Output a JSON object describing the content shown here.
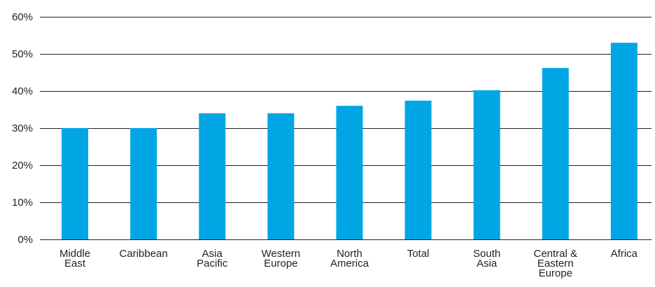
{
  "colors": {
    "bar": "#00a5e3",
    "gridline": "#231f20",
    "text": "#231f20",
    "background": "#ffffff"
  },
  "chart_data": {
    "type": "bar",
    "title": "",
    "xlabel": "",
    "ylabel": "",
    "categories": [
      [
        "Middle",
        "East"
      ],
      [
        "Caribbean"
      ],
      [
        "Asia",
        "Pacific"
      ],
      [
        "Western",
        "Europe"
      ],
      [
        "North",
        "America"
      ],
      [
        "Total"
      ],
      [
        "South",
        "Asia"
      ],
      [
        "Central &",
        "Eastern",
        "Europe"
      ],
      [
        "Africa"
      ]
    ],
    "values": [
      30,
      30,
      34,
      34,
      36,
      37.4,
      40.2,
      46.2,
      53
    ],
    "unit": "%",
    "ylim": [
      0,
      60
    ],
    "yticks": [
      0,
      10,
      20,
      30,
      40,
      50,
      60
    ],
    "ytick_labels": [
      "0%",
      "10%",
      "20%",
      "30%",
      "40%",
      "50%",
      "60%"
    ],
    "grid": true,
    "legend": "none"
  }
}
